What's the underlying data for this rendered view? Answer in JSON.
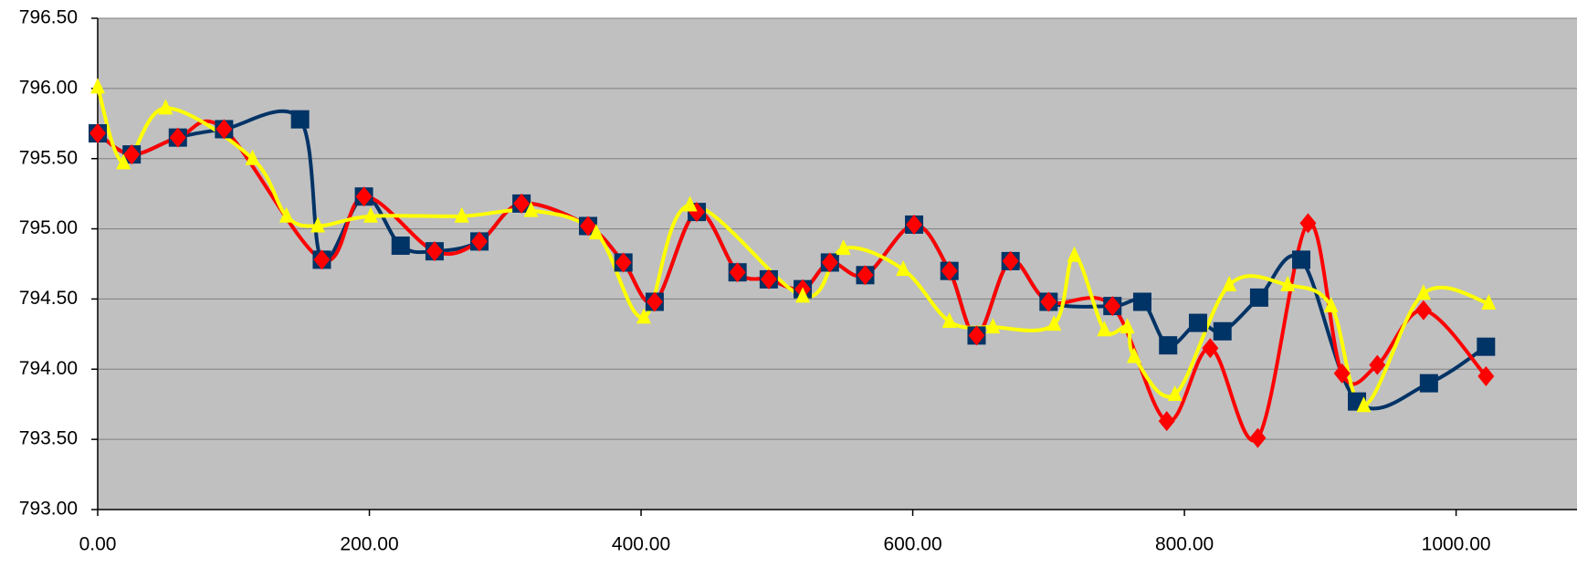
{
  "chart_data": {
    "type": "scatter",
    "smooth": true,
    "grid": true,
    "plot_background": "#c0c0c0",
    "xlim": [
      0,
      1089
    ],
    "xticks": [
      {
        "value": 0,
        "label": "0.00"
      },
      {
        "value": 200,
        "label": "200.00"
      },
      {
        "value": 400,
        "label": "400.00"
      },
      {
        "value": 600,
        "label": "600.00"
      },
      {
        "value": 800,
        "label": "800.00"
      },
      {
        "value": 1000,
        "label": "1000.00"
      }
    ],
    "ylim": [
      793,
      796.5
    ],
    "yticks": [
      {
        "value": 793,
        "label": "793.00"
      },
      {
        "value": 793.5,
        "label": "793.50"
      },
      {
        "value": 794,
        "label": "794.00"
      },
      {
        "value": 794.5,
        "label": "794.50"
      },
      {
        "value": 795,
        "label": "795.00"
      },
      {
        "value": 795.5,
        "label": "795.50"
      },
      {
        "value": 796,
        "label": "796.00"
      },
      {
        "value": 796.5,
        "label": "796.50"
      }
    ],
    "series": [
      {
        "color": "#003366",
        "marker": "square",
        "x": [
          0,
          25,
          59,
          93,
          149,
          165,
          196,
          223,
          248,
          281,
          312,
          361,
          387,
          410,
          441,
          471,
          494,
          519,
          539,
          565,
          601,
          627,
          647,
          672,
          700,
          747,
          769,
          788,
          810,
          828,
          855,
          886,
          927,
          980,
          1022
        ],
        "values": [
          795.68,
          795.53,
          795.65,
          795.71,
          795.78,
          794.78,
          795.23,
          794.88,
          794.84,
          794.91,
          795.18,
          795.02,
          794.76,
          794.48,
          795.12,
          794.69,
          794.64,
          794.57,
          794.76,
          794.67,
          795.03,
          794.7,
          794.24,
          794.77,
          794.48,
          794.45,
          794.48,
          794.17,
          794.33,
          794.27,
          794.51,
          794.78,
          793.77,
          793.9,
          794.16
        ]
      },
      {
        "color": "#ff0000",
        "marker": "diamond",
        "x": [
          0,
          25,
          59,
          93,
          165,
          196,
          248,
          281,
          312,
          361,
          387,
          410,
          441,
          471,
          494,
          519,
          539,
          565,
          601,
          627,
          647,
          672,
          700,
          747,
          787,
          819,
          854,
          891,
          916,
          942,
          976,
          1022
        ],
        "values": [
          795.68,
          795.53,
          795.65,
          795.71,
          794.78,
          795.23,
          794.84,
          794.91,
          795.18,
          795.02,
          794.76,
          794.48,
          795.12,
          794.69,
          794.64,
          794.57,
          794.76,
          794.67,
          795.03,
          794.7,
          794.24,
          794.77,
          794.48,
          794.45,
          793.63,
          794.15,
          793.51,
          795.04,
          793.97,
          794.03,
          794.42,
          793.95
        ]
      },
      {
        "color": "#ffff00",
        "marker": "triangle",
        "x": [
          0,
          19,
          50,
          114,
          139,
          162,
          201,
          268,
          319,
          367,
          402,
          436,
          519,
          549,
          593,
          627,
          659,
          704,
          719,
          741,
          758,
          763,
          793,
          833,
          876,
          908,
          932,
          976,
          1024
        ],
        "values": [
          796.01,
          795.47,
          795.86,
          795.5,
          795.09,
          795.02,
          795.09,
          795.09,
          795.13,
          794.97,
          794.37,
          795.17,
          794.52,
          794.86,
          794.71,
          794.34,
          794.3,
          794.32,
          794.81,
          794.28,
          794.3,
          794.09,
          793.82,
          794.6,
          794.6,
          794.45,
          793.74,
          794.54,
          794.47
        ]
      }
    ]
  }
}
